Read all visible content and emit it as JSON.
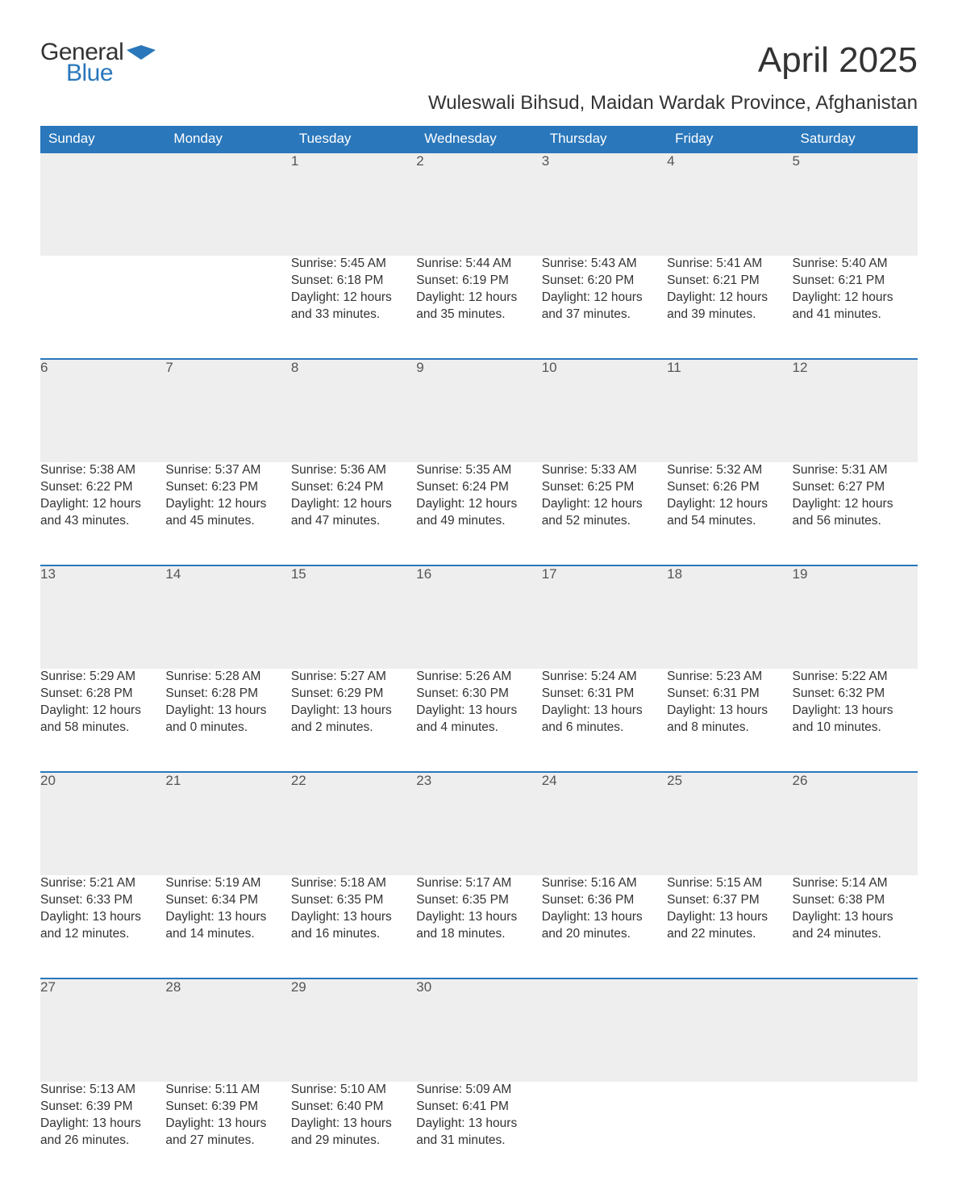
{
  "logo": {
    "line1": "General",
    "line2": "Blue",
    "shape_color": "#2a77bb"
  },
  "title": "April 2025",
  "subtitle": "Wuleswali Bihsud, Maidan Wardak Province, Afghanistan",
  "colors": {
    "header_bg": "#2a77bb",
    "header_text": "#ffffff",
    "daynum_bg": "#eeeeee",
    "row_border": "#2a77bb",
    "body_text": "#333333",
    "page_bg": "#ffffff"
  },
  "typography": {
    "title_fontsize": 44,
    "subtitle_fontsize": 24,
    "header_fontsize": 17,
    "daynum_fontsize": 17,
    "cell_fontsize": 15.5,
    "font_family": "Arial"
  },
  "calendar": {
    "columns": [
      "Sunday",
      "Monday",
      "Tuesday",
      "Wednesday",
      "Thursday",
      "Friday",
      "Saturday"
    ],
    "weeks": [
      [
        null,
        null,
        {
          "n": "1",
          "sr": "5:45 AM",
          "ss": "6:18 PM",
          "dh": "12",
          "dm": "33"
        },
        {
          "n": "2",
          "sr": "5:44 AM",
          "ss": "6:19 PM",
          "dh": "12",
          "dm": "35"
        },
        {
          "n": "3",
          "sr": "5:43 AM",
          "ss": "6:20 PM",
          "dh": "12",
          "dm": "37"
        },
        {
          "n": "4",
          "sr": "5:41 AM",
          "ss": "6:21 PM",
          "dh": "12",
          "dm": "39"
        },
        {
          "n": "5",
          "sr": "5:40 AM",
          "ss": "6:21 PM",
          "dh": "12",
          "dm": "41"
        }
      ],
      [
        {
          "n": "6",
          "sr": "5:38 AM",
          "ss": "6:22 PM",
          "dh": "12",
          "dm": "43"
        },
        {
          "n": "7",
          "sr": "5:37 AM",
          "ss": "6:23 PM",
          "dh": "12",
          "dm": "45"
        },
        {
          "n": "8",
          "sr": "5:36 AM",
          "ss": "6:24 PM",
          "dh": "12",
          "dm": "47"
        },
        {
          "n": "9",
          "sr": "5:35 AM",
          "ss": "6:24 PM",
          "dh": "12",
          "dm": "49"
        },
        {
          "n": "10",
          "sr": "5:33 AM",
          "ss": "6:25 PM",
          "dh": "12",
          "dm": "52"
        },
        {
          "n": "11",
          "sr": "5:32 AM",
          "ss": "6:26 PM",
          "dh": "12",
          "dm": "54"
        },
        {
          "n": "12",
          "sr": "5:31 AM",
          "ss": "6:27 PM",
          "dh": "12",
          "dm": "56"
        }
      ],
      [
        {
          "n": "13",
          "sr": "5:29 AM",
          "ss": "6:28 PM",
          "dh": "12",
          "dm": "58"
        },
        {
          "n": "14",
          "sr": "5:28 AM",
          "ss": "6:28 PM",
          "dh": "13",
          "dm": "0"
        },
        {
          "n": "15",
          "sr": "5:27 AM",
          "ss": "6:29 PM",
          "dh": "13",
          "dm": "2"
        },
        {
          "n": "16",
          "sr": "5:26 AM",
          "ss": "6:30 PM",
          "dh": "13",
          "dm": "4"
        },
        {
          "n": "17",
          "sr": "5:24 AM",
          "ss": "6:31 PM",
          "dh": "13",
          "dm": "6"
        },
        {
          "n": "18",
          "sr": "5:23 AM",
          "ss": "6:31 PM",
          "dh": "13",
          "dm": "8"
        },
        {
          "n": "19",
          "sr": "5:22 AM",
          "ss": "6:32 PM",
          "dh": "13",
          "dm": "10"
        }
      ],
      [
        {
          "n": "20",
          "sr": "5:21 AM",
          "ss": "6:33 PM",
          "dh": "13",
          "dm": "12"
        },
        {
          "n": "21",
          "sr": "5:19 AM",
          "ss": "6:34 PM",
          "dh": "13",
          "dm": "14"
        },
        {
          "n": "22",
          "sr": "5:18 AM",
          "ss": "6:35 PM",
          "dh": "13",
          "dm": "16"
        },
        {
          "n": "23",
          "sr": "5:17 AM",
          "ss": "6:35 PM",
          "dh": "13",
          "dm": "18"
        },
        {
          "n": "24",
          "sr": "5:16 AM",
          "ss": "6:36 PM",
          "dh": "13",
          "dm": "20"
        },
        {
          "n": "25",
          "sr": "5:15 AM",
          "ss": "6:37 PM",
          "dh": "13",
          "dm": "22"
        },
        {
          "n": "26",
          "sr": "5:14 AM",
          "ss": "6:38 PM",
          "dh": "13",
          "dm": "24"
        }
      ],
      [
        {
          "n": "27",
          "sr": "5:13 AM",
          "ss": "6:39 PM",
          "dh": "13",
          "dm": "26"
        },
        {
          "n": "28",
          "sr": "5:11 AM",
          "ss": "6:39 PM",
          "dh": "13",
          "dm": "27"
        },
        {
          "n": "29",
          "sr": "5:10 AM",
          "ss": "6:40 PM",
          "dh": "13",
          "dm": "29"
        },
        {
          "n": "30",
          "sr": "5:09 AM",
          "ss": "6:41 PM",
          "dh": "13",
          "dm": "31"
        },
        null,
        null,
        null
      ]
    ]
  },
  "labels": {
    "sunrise_prefix": "Sunrise: ",
    "sunset_prefix": "Sunset: ",
    "daylight_prefix": "Daylight: ",
    "hours_word": " hours",
    "and_word": "and ",
    "minutes_word": " minutes."
  }
}
